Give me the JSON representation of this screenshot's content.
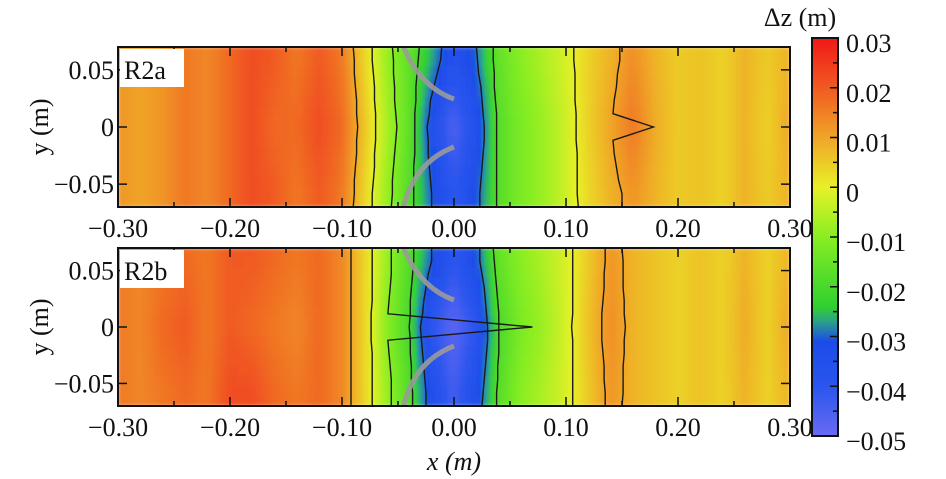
{
  "chart_data": {
    "type": "heatmap",
    "xlabel": "x (m)",
    "ylabel": "y (m)",
    "colorbar": {
      "label": "Δz (m)",
      "range": [
        -0.05,
        0.03
      ],
      "ticks": [
        "0.03",
        "0.02",
        "0.01",
        "0",
        "−0.01",
        "−0.02",
        "−0.03",
        "−0.04",
        "−0.05"
      ],
      "tick_values": [
        0.03,
        0.02,
        0.01,
        0,
        -0.01,
        -0.02,
        -0.03,
        -0.04,
        -0.05
      ],
      "colormap": [
        {
          "v": -0.05,
          "c": "#6a6af2"
        },
        {
          "v": -0.04,
          "c": "#2a55ee"
        },
        {
          "v": -0.031,
          "c": "#1c4ce8"
        },
        {
          "v": -0.027,
          "c": "#2aa088"
        },
        {
          "v": -0.024,
          "c": "#30d030"
        },
        {
          "v": -0.01,
          "c": "#88ee22"
        },
        {
          "v": 0.0,
          "c": "#e8f028"
        },
        {
          "v": 0.01,
          "c": "#f0a428"
        },
        {
          "v": 0.02,
          "c": "#f05a22"
        },
        {
          "v": 0.03,
          "c": "#f01818"
        }
      ]
    },
    "xlim": [
      -0.3,
      0.3
    ],
    "ylim": [
      -0.07,
      0.07
    ],
    "x_ticks": [
      "−0.30",
      "−0.20",
      "−0.10",
      "0.00",
      "0.10",
      "0.20",
      "0.30"
    ],
    "x_tick_values": [
      -0.3,
      -0.2,
      -0.1,
      0.0,
      0.1,
      0.2,
      0.3
    ],
    "y_ticks": [
      "0.05",
      "0",
      "−0.05"
    ],
    "y_tick_values": [
      0.05,
      0,
      -0.05
    ],
    "contour_levels": [
      -0.03,
      -0.02,
      -0.01,
      0,
      0.01
    ],
    "x": [
      -0.3,
      -0.28,
      -0.26,
      -0.24,
      -0.22,
      -0.2,
      -0.18,
      -0.16,
      -0.14,
      -0.12,
      -0.1,
      -0.08,
      -0.06,
      -0.04,
      -0.02,
      0.0,
      0.02,
      0.04,
      0.06,
      0.08,
      0.1,
      0.12,
      0.14,
      0.16,
      0.18,
      0.2,
      0.22,
      0.24,
      0.26,
      0.28,
      0.3
    ],
    "y": [
      0.06,
      0.0,
      -0.06
    ],
    "panels": [
      {
        "label": "R2a",
        "z": [
          [
            0.012,
            0.01,
            0.012,
            0.016,
            0.014,
            0.018,
            0.022,
            0.02,
            0.016,
            0.02,
            0.016,
            0.004,
            -0.008,
            -0.016,
            -0.026,
            -0.036,
            -0.03,
            -0.016,
            -0.01,
            -0.006,
            -0.002,
            0.004,
            0.008,
            0.013,
            0.008,
            0.005,
            0.006,
            0.004,
            0.008,
            0.005,
            0.008
          ],
          [
            0.012,
            0.01,
            0.012,
            0.016,
            0.014,
            0.018,
            0.022,
            0.018,
            0.018,
            0.022,
            0.018,
            0.006,
            -0.006,
            -0.016,
            -0.034,
            -0.046,
            -0.036,
            -0.018,
            -0.012,
            -0.008,
            -0.003,
            0.004,
            0.01,
            0.016,
            0.009,
            0.005,
            0.006,
            0.004,
            0.008,
            0.004,
            0.01
          ],
          [
            0.012,
            0.01,
            0.012,
            0.016,
            0.014,
            0.018,
            0.022,
            0.02,
            0.016,
            0.02,
            0.016,
            0.004,
            -0.008,
            -0.018,
            -0.03,
            -0.04,
            -0.032,
            -0.018,
            -0.012,
            -0.008,
            -0.003,
            0.003,
            0.008,
            0.012,
            0.008,
            0.005,
            0.006,
            0.004,
            0.008,
            0.005,
            0.008
          ]
        ]
      },
      {
        "label": "R2b",
        "z": [
          [
            0.016,
            0.014,
            0.016,
            0.018,
            0.016,
            0.02,
            0.02,
            0.018,
            0.016,
            0.018,
            0.014,
            0.004,
            -0.008,
            -0.018,
            -0.03,
            -0.04,
            -0.032,
            -0.016,
            -0.01,
            -0.006,
            -0.002,
            0.005,
            0.012,
            0.008,
            0.006,
            0.004,
            0.006,
            0.004,
            0.008,
            0.004,
            0.008
          ],
          [
            0.016,
            0.014,
            0.018,
            0.02,
            0.016,
            0.02,
            0.018,
            0.016,
            0.014,
            0.018,
            0.014,
            0.004,
            -0.01,
            -0.02,
            -0.04,
            -0.048,
            -0.04,
            -0.02,
            -0.012,
            -0.008,
            -0.002,
            0.006,
            0.013,
            0.008,
            0.006,
            0.004,
            0.006,
            0.004,
            0.009,
            0.004,
            0.01
          ],
          [
            0.016,
            0.014,
            0.016,
            0.018,
            0.016,
            0.022,
            0.022,
            0.018,
            0.016,
            0.018,
            0.014,
            0.004,
            -0.008,
            -0.018,
            -0.034,
            -0.044,
            -0.034,
            -0.018,
            -0.01,
            -0.006,
            -0.002,
            0.005,
            0.012,
            0.008,
            0.006,
            0.004,
            0.006,
            0.004,
            0.008,
            0.004,
            0.008
          ]
        ]
      }
    ]
  }
}
